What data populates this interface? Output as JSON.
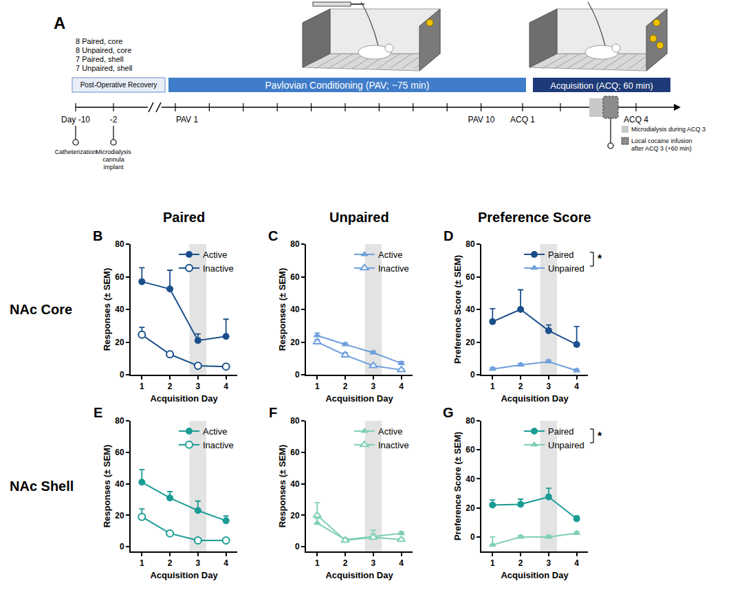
{
  "diagram": {
    "panel_label": "A",
    "groups": [
      "8 Paired, core",
      "8 Unpaired, core",
      "7 Paired, shell",
      "7 Unpaired, shell"
    ],
    "phases": [
      "Post-Operative Recovery",
      "Pavlovian Conditioning (PAV; ~75 min)",
      "Acquisition (ACQ; 60 min)"
    ],
    "timeline_labels": [
      "Day -10",
      "-2",
      "PAV 1",
      "PAV 10",
      "ACQ 1",
      "ACQ 4"
    ],
    "events": [
      "Catheterization",
      "Microdialysis cannula implant"
    ],
    "key_items": [
      "Microdialysis during ACQ 3",
      "Local cocaine infusion after ACQ 3 (+60 min)"
    ]
  },
  "column_titles": [
    "Paired",
    "Unpaired",
    "Preference Score"
  ],
  "row_titles": [
    "NAc Core",
    "NAc Shell"
  ],
  "chart_data": [
    {
      "panel": "B",
      "type": "line",
      "x_label": "Acquisition Day",
      "y_label": "Responses (± SEM)",
      "x": [
        1,
        2,
        3,
        4
      ],
      "xlim": [
        0.6,
        4.4
      ],
      "xticks": [
        1,
        2,
        3,
        4
      ],
      "ylim": [
        0,
        80
      ],
      "yticks": [
        0,
        20,
        40,
        60,
        80
      ],
      "legend": "upper right",
      "shaded_x": [
        2.7,
        3.3
      ],
      "series": [
        {
          "name": "Active",
          "color": "#1b4f8c",
          "marker": "circle",
          "values": [
            57,
            52.5,
            21,
            23.5
          ],
          "error": [
            8.5,
            11.5,
            4,
            10.5
          ]
        },
        {
          "name": "Inactive",
          "color": "#1b4f8c",
          "marker": "circle-open",
          "values": [
            24.5,
            12.5,
            5.5,
            5
          ],
          "error": [
            4.5,
            1,
            1,
            0.5
          ]
        }
      ]
    },
    {
      "panel": "C",
      "type": "line",
      "x_label": "Acquisition Day",
      "y_label": "Responses (± SEM)",
      "x": [
        1,
        2,
        3,
        4
      ],
      "xlim": [
        0.6,
        4.4
      ],
      "xticks": [
        1,
        2,
        3,
        4
      ],
      "ylim": [
        0,
        80
      ],
      "yticks": [
        0,
        20,
        40,
        60,
        80
      ],
      "legend": "upper right",
      "shaded_x": [
        2.7,
        3.3
      ],
      "series": [
        {
          "name": "Active",
          "color": "#6f9fdc",
          "marker": "triangle-up",
          "values": [
            24,
            18.5,
            13.5,
            7
          ],
          "error": [
            1.5,
            1,
            1,
            1
          ]
        },
        {
          "name": "Inactive",
          "color": "#6f9fdc",
          "marker": "triangle-up-open",
          "values": [
            20,
            12,
            5.5,
            3
          ],
          "error": [
            1.5,
            1.5,
            1,
            0.5
          ]
        }
      ]
    },
    {
      "panel": "D",
      "type": "line",
      "x_label": "Acquisition Day",
      "y_label": "Preference Score (± SEM)",
      "x": [
        1,
        2,
        3,
        4
      ],
      "xlim": [
        0.6,
        4.4
      ],
      "xticks": [
        1,
        2,
        3,
        4
      ],
      "ylim": [
        0,
        80
      ],
      "yticks": [
        0,
        20,
        40,
        60,
        80
      ],
      "legend": "upper right",
      "shaded_x": [
        2.7,
        3.3
      ],
      "annotations": [
        {
          "text": "*"
        }
      ],
      "series": [
        {
          "name": "Paired",
          "color": "#1b4f8c",
          "marker": "circle",
          "values": [
            32.5,
            40,
            27,
            18.5
          ],
          "error": [
            8,
            12,
            3.5,
            11
          ]
        },
        {
          "name": "Unpaired",
          "color": "#6f9fdc",
          "marker": "triangle-up",
          "values": [
            3.5,
            6,
            8,
            2.5
          ],
          "error": [
            1,
            1,
            1,
            1
          ]
        }
      ]
    },
    {
      "panel": "E",
      "type": "line",
      "x_label": "Acquisition Day",
      "y_label": "Responses (± SEM)",
      "x": [
        1,
        2,
        3,
        4
      ],
      "xlim": [
        0.6,
        4.4
      ],
      "xticks": [
        1,
        2,
        3,
        4
      ],
      "ylim": [
        -3,
        80
      ],
      "yticks": [
        0,
        20,
        40,
        60,
        80
      ],
      "legend": "upper right",
      "shaded_x": [
        2.7,
        3.3
      ],
      "series": [
        {
          "name": "Active",
          "color": "#1a9c94",
          "marker": "circle",
          "values": [
            41,
            31,
            23,
            16.5
          ],
          "error": [
            8,
            4,
            6,
            3
          ]
        },
        {
          "name": "Inactive",
          "color": "#1a9c94",
          "marker": "circle-open",
          "values": [
            19,
            8.5,
            4,
            4
          ],
          "error": [
            5,
            1,
            1,
            1
          ]
        }
      ]
    },
    {
      "panel": "F",
      "type": "line",
      "x_label": "Acquisition Day",
      "y_label": "Responses (± SEM)",
      "x": [
        1,
        2,
        3,
        4
      ],
      "xlim": [
        0.6,
        4.4
      ],
      "xticks": [
        1,
        2,
        3,
        4
      ],
      "ylim": [
        -3,
        80
      ],
      "yticks": [
        0,
        20,
        40,
        60,
        80
      ],
      "legend": "upper right",
      "shaded_x": [
        2.7,
        3.3
      ],
      "series": [
        {
          "name": "Active",
          "color": "#7fcfb5",
          "marker": "triangle-up",
          "values": [
            15,
            4.5,
            6.5,
            8.5
          ],
          "error": [
            3,
            1,
            4,
            1
          ]
        },
        {
          "name": "Inactive",
          "color": "#7fcfb5",
          "marker": "triangle-up-open",
          "values": [
            20,
            4,
            6,
            4.5
          ],
          "error": [
            8,
            1,
            2,
            1
          ]
        }
      ]
    },
    {
      "panel": "G",
      "type": "line",
      "x_label": "Acquisition Day",
      "y_label": "Preference Score (± SEM)",
      "x": [
        1,
        2,
        3,
        4
      ],
      "xlim": [
        0.6,
        4.4
      ],
      "xticks": [
        1,
        2,
        3,
        4
      ],
      "ylim": [
        -10,
        80
      ],
      "yticks": [
        0,
        20,
        40,
        60,
        80
      ],
      "legend": "upper right",
      "shaded_x": [
        2.7,
        3.3
      ],
      "annotations": [
        {
          "text": "*"
        }
      ],
      "series": [
        {
          "name": "Paired",
          "color": "#1a9c94",
          "marker": "circle",
          "values": [
            22,
            22.5,
            27.5,
            12.5
          ],
          "error": [
            3.5,
            3.5,
            6,
            2
          ]
        },
        {
          "name": "Unpaired",
          "color": "#7fcfb5",
          "marker": "triangle-up",
          "values": [
            -5.5,
            0,
            0,
            2.5
          ],
          "error": [
            5.5,
            1,
            1,
            1
          ]
        }
      ]
    }
  ]
}
